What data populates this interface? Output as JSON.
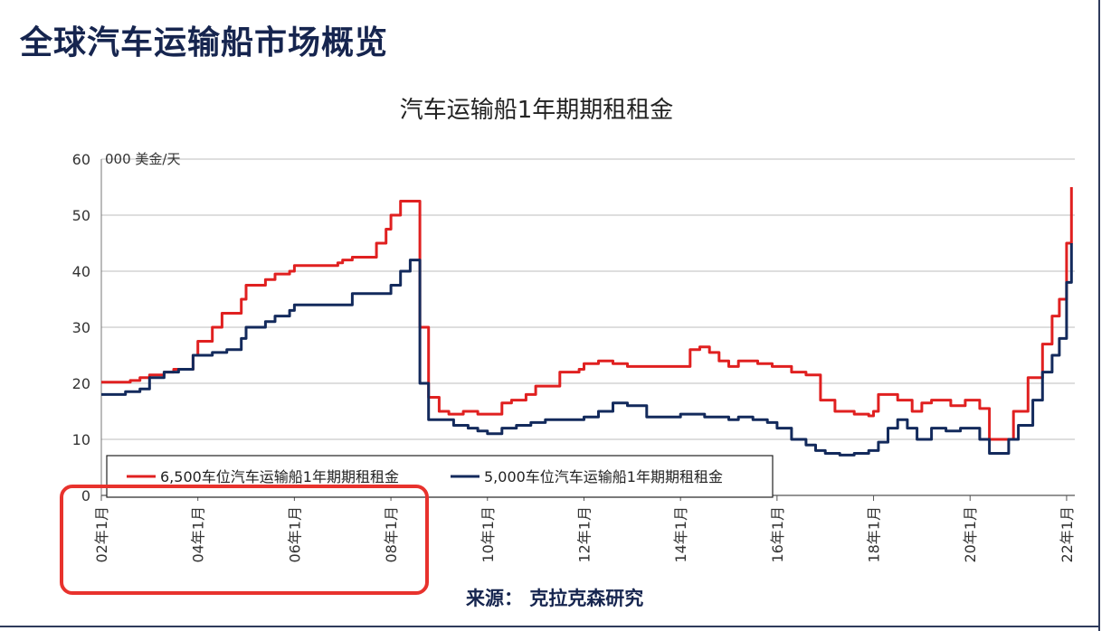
{
  "page": {
    "title": "全球汽车运输船市场概览",
    "source": "来源：  克拉克森研究"
  },
  "chart_data": {
    "type": "line",
    "title": "汽车运输船1年期期租租金",
    "unit_label": "000 美金/天",
    "xlabel": "",
    "ylabel": "",
    "ylim": [
      0,
      60
    ],
    "yticks": [
      0,
      10,
      20,
      30,
      40,
      50,
      60
    ],
    "xlim": [
      2002.0,
      2022.17
    ],
    "xticks": [
      {
        "value": 2002,
        "label": "02年1月"
      },
      {
        "value": 2004,
        "label": "04年1月"
      },
      {
        "value": 2006,
        "label": "06年1月"
      },
      {
        "value": 2008,
        "label": "08年1月"
      },
      {
        "value": 2010,
        "label": "10年1月"
      },
      {
        "value": 2012,
        "label": "12年1月"
      },
      {
        "value": 2014,
        "label": "14年1月"
      },
      {
        "value": 2016,
        "label": "16年1月"
      },
      {
        "value": 2018,
        "label": "18年1月"
      },
      {
        "value": 2020,
        "label": "20年1月"
      },
      {
        "value": 2022,
        "label": "22年1月"
      }
    ],
    "grid": true,
    "legend_position": "bottom-left",
    "highlight_box": {
      "from": "02年1月",
      "to": "08年1月",
      "color": "#e8322d"
    },
    "series": [
      {
        "name": "6,500车位汽车运输船1年期期租租金",
        "color": "#e02020",
        "x": [
          2002.0,
          2002.6,
          2002.8,
          2003.0,
          2003.3,
          2003.5,
          2003.9,
          2004.0,
          2004.3,
          2004.5,
          2004.9,
          2005.0,
          2005.4,
          2005.6,
          2005.9,
          2006.0,
          2006.3,
          2006.6,
          2006.9,
          2007.0,
          2007.2,
          2007.5,
          2007.7,
          2007.9,
          2008.0,
          2008.2,
          2008.4,
          2008.6,
          2008.75,
          2008.78,
          2008.9,
          2009.0,
          2009.2,
          2009.5,
          2009.8,
          2010.0,
          2010.3,
          2010.5,
          2010.8,
          2011.0,
          2011.5,
          2011.9,
          2012.0,
          2012.3,
          2012.6,
          2012.9,
          2013.0,
          2013.5,
          2014.0,
          2014.2,
          2014.4,
          2014.6,
          2014.8,
          2015.0,
          2015.2,
          2015.6,
          2015.9,
          2016.0,
          2016.3,
          2016.6,
          2016.9,
          2017.2,
          2017.6,
          2017.9,
          2018.0,
          2018.1,
          2018.3,
          2018.5,
          2018.8,
          2019.0,
          2019.2,
          2019.6,
          2019.9,
          2020.0,
          2020.2,
          2020.4,
          2020.6,
          2020.9,
          2021.2,
          2021.5,
          2021.7,
          2021.85,
          2022.0,
          2022.1
        ],
        "y": [
          20.2,
          20.5,
          21.0,
          21.5,
          22.0,
          22.5,
          25.0,
          27.5,
          30.0,
          32.5,
          35.0,
          37.5,
          38.5,
          39.5,
          40.0,
          41.0,
          41.0,
          41.0,
          41.5,
          42.0,
          42.5,
          42.5,
          45.0,
          47.5,
          50.0,
          52.5,
          52.5,
          30.0,
          30.0,
          17.5,
          17.5,
          15.0,
          14.5,
          15.0,
          14.5,
          14.5,
          16.5,
          17.0,
          18.0,
          19.5,
          22.0,
          22.5,
          23.5,
          24.0,
          23.5,
          23.0,
          23.0,
          23.0,
          23.0,
          26.0,
          26.5,
          25.5,
          24.0,
          23.0,
          24.0,
          23.5,
          23.0,
          23.0,
          22.0,
          21.5,
          17.0,
          15.0,
          14.5,
          14.2,
          15.0,
          18.0,
          18.0,
          17.0,
          15.0,
          16.5,
          17.0,
          16.0,
          17.0,
          17.0,
          15.5,
          10.0,
          10.0,
          15.0,
          21.0,
          27.0,
          32.0,
          35.0,
          45.0,
          55.0
        ]
      },
      {
        "name": "5,000车位汽车运输船1年期期租租金",
        "color": "#132a5c",
        "x": [
          2002.0,
          2002.5,
          2002.8,
          2003.0,
          2003.3,
          2003.6,
          2003.9,
          2004.0,
          2004.3,
          2004.6,
          2004.9,
          2005.0,
          2005.4,
          2005.6,
          2005.9,
          2006.0,
          2006.4,
          2006.8,
          2007.0,
          2007.2,
          2007.5,
          2007.7,
          2007.9,
          2008.0,
          2008.2,
          2008.4,
          2008.55,
          2008.6,
          2008.75,
          2008.78,
          2009.0,
          2009.3,
          2009.6,
          2009.8,
          2010.0,
          2010.3,
          2010.6,
          2010.9,
          2011.2,
          2011.6,
          2012.0,
          2012.3,
          2012.6,
          2012.9,
          2013.0,
          2013.3,
          2013.6,
          2014.0,
          2014.3,
          2014.5,
          2014.8,
          2015.0,
          2015.2,
          2015.5,
          2015.8,
          2016.0,
          2016.3,
          2016.6,
          2016.8,
          2017.0,
          2017.3,
          2017.6,
          2017.9,
          2018.1,
          2018.3,
          2018.5,
          2018.7,
          2018.9,
          2019.0,
          2019.2,
          2019.5,
          2019.8,
          2020.0,
          2020.2,
          2020.4,
          2020.6,
          2020.8,
          2021.0,
          2021.3,
          2021.5,
          2021.7,
          2021.85,
          2022.0,
          2022.1
        ],
        "y": [
          18.0,
          18.5,
          19.0,
          21.0,
          22.0,
          22.5,
          25.0,
          25.0,
          25.5,
          26.0,
          28.0,
          30.0,
          31.0,
          32.0,
          33.0,
          34.0,
          34.0,
          34.0,
          34.0,
          36.0,
          36.0,
          36.0,
          36.0,
          37.5,
          40.0,
          42.0,
          42.0,
          20.0,
          20.0,
          13.5,
          13.5,
          12.5,
          12.0,
          11.5,
          11.0,
          12.0,
          12.5,
          13.0,
          13.5,
          13.5,
          14.0,
          15.0,
          16.5,
          16.0,
          16.0,
          14.0,
          14.0,
          14.5,
          14.5,
          14.0,
          14.0,
          13.5,
          14.0,
          13.5,
          13.0,
          12.0,
          10.0,
          9.0,
          8.0,
          7.5,
          7.2,
          7.5,
          8.0,
          9.5,
          12.0,
          13.5,
          12.0,
          10.0,
          10.0,
          12.0,
          11.5,
          12.0,
          12.0,
          10.0,
          7.5,
          7.5,
          10.0,
          12.5,
          17.0,
          22.0,
          25.0,
          28.0,
          38.0,
          45.0
        ]
      }
    ]
  }
}
